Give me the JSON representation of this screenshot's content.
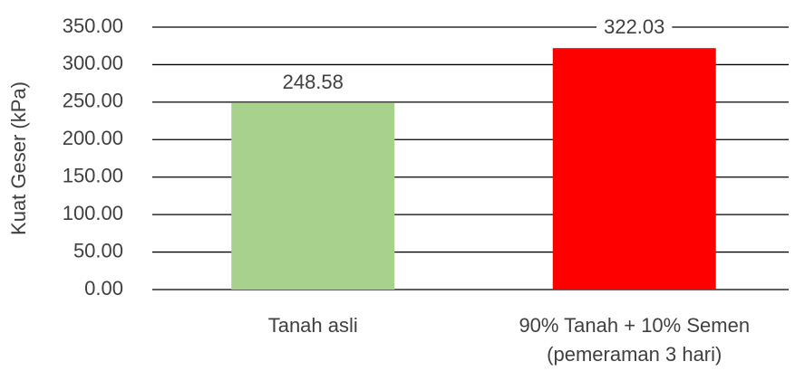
{
  "chart_data": {
    "type": "bar",
    "y_label": "Kuat Geser (kPa)",
    "categories": [
      "Tanah asli",
      "90% Tanah + 10% Semen (pemeraman 3 hari)"
    ],
    "values": [
      248.58,
      322.03
    ],
    "colors": [
      "#a9d18e",
      "#ff0000"
    ],
    "ylim": [
      0,
      350
    ],
    "yticks": [
      {
        "value": 0,
        "label": "0.00"
      },
      {
        "value": 50,
        "label": "50.00"
      },
      {
        "value": 100,
        "label": "100.00"
      },
      {
        "value": 150,
        "label": "150.00"
      },
      {
        "value": 200,
        "label": "200.00"
      },
      {
        "value": 250,
        "label": "250.00"
      },
      {
        "value": 300,
        "label": "300.00"
      },
      {
        "value": 350,
        "label": "350.00"
      }
    ],
    "grid": true
  }
}
